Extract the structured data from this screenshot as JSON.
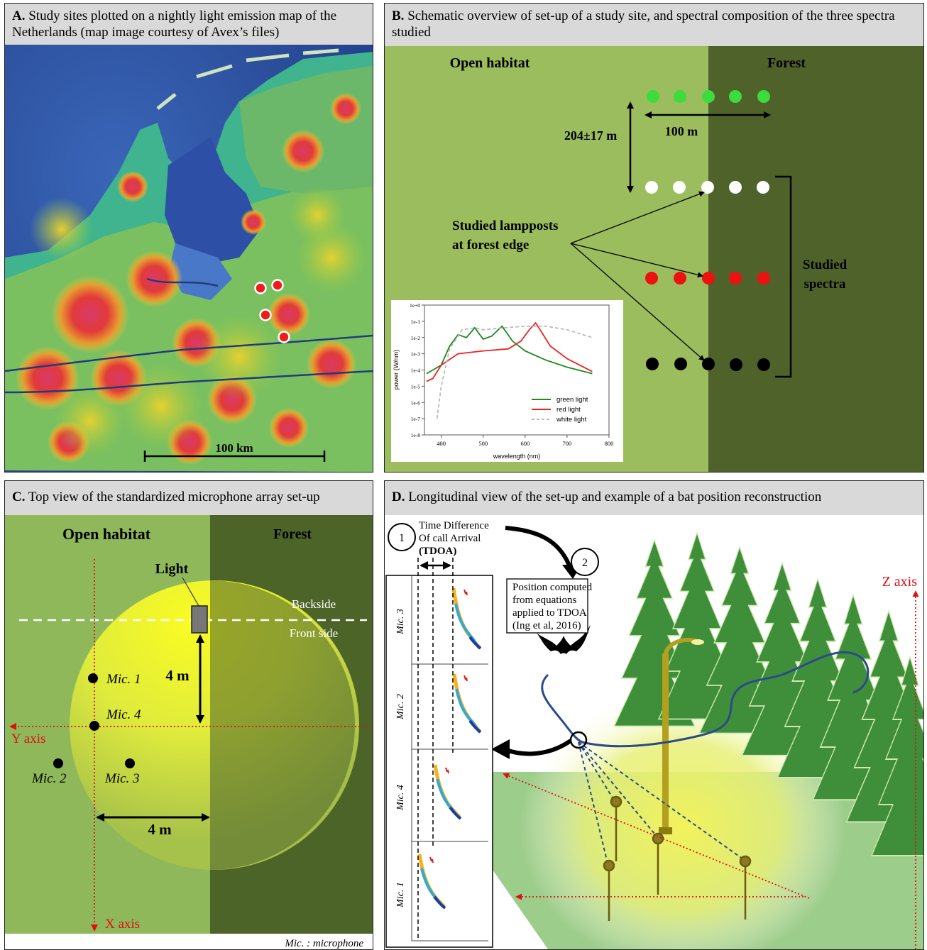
{
  "panel_a": {
    "letter": "A.",
    "title": "Study sites plotted on a nightly light emission map of the Netherlands (map image courtesy of Avex’s files)",
    "scale_label": "100 km"
  },
  "panel_b": {
    "letter": "B.",
    "title": "Schematic overview of set-up of a study site, and spectral composition of the three spectra studied",
    "open_habitat": "Open habitat",
    "forest": "Forest",
    "vertical_distance": "204±17 m",
    "horizontal_distance": "100 m",
    "lampposts_label_1": "Studied lampposts",
    "lampposts_label_2": "at forest edge",
    "spectra_label_1": "Studied",
    "spectra_label_2": "spectra",
    "colors": {
      "open": "#9bbd5e",
      "forest": "#4e6229",
      "green_dot": "#3ddc3d",
      "white_dot": "#ffffff",
      "red_dot": "#ee1111",
      "black_dot": "#000000"
    }
  },
  "chart_data": {
    "type": "line",
    "xlabel": "wavelength (nm)",
    "ylabel": "power (W/nm)",
    "xlim": [
      360,
      800
    ],
    "y_scale": "log",
    "x_ticks": [
      "400",
      "500",
      "600",
      "700",
      "800"
    ],
    "y_ticks": [
      "1e+0",
      "1e-1",
      "1e-2",
      "1e-3",
      "1e-4",
      "1e-5",
      "1e-6",
      "1e-7",
      "1e-8"
    ],
    "legend_position": "bottom-right",
    "series": [
      {
        "name": "green light",
        "color": "#1a8a1a",
        "x": [
          365,
          380,
          400,
          420,
          440,
          460,
          480,
          500,
          520,
          545,
          570,
          600,
          650,
          700,
          760
        ],
        "y": [
          6e-05,
          0.0001,
          0.0002,
          0.003,
          0.015,
          0.01,
          0.04,
          0.008,
          0.012,
          0.05,
          0.006,
          0.0015,
          0.0004,
          0.00015,
          6e-05
        ]
      },
      {
        "name": "red light",
        "color": "#ee2222",
        "x": [
          365,
          380,
          400,
          440,
          500,
          560,
          590,
          610,
          625,
          640,
          660,
          700,
          760
        ],
        "y": [
          2e-05,
          3e-05,
          0.0002,
          0.001,
          0.0015,
          0.002,
          0.006,
          0.03,
          0.08,
          0.02,
          0.003,
          0.0005,
          8e-05
        ]
      },
      {
        "name": "white light",
        "color": "#bbbbbb",
        "dashed": true,
        "x": [
          390,
          400,
          420,
          450,
          480,
          500,
          550,
          600,
          650,
          700,
          760
        ],
        "y": [
          1e-07,
          1e-05,
          0.002,
          0.03,
          0.04,
          0.03,
          0.04,
          0.05,
          0.05,
          0.03,
          0.01
        ]
      }
    ]
  },
  "panel_c": {
    "letter": "C.",
    "title": "Top view of the standardized microphone array set-up",
    "open_habitat": "Open habitat",
    "forest": "Forest",
    "light": "Light",
    "backside": "Backside",
    "front_side": "Front side",
    "dist_vertical": "4 m",
    "dist_horizontal": "4 m",
    "mic1": "Mic. 1",
    "mic2": "Mic. 2",
    "mic3": "Mic. 3",
    "mic4": "Mic. 4",
    "y_axis": "Y axis",
    "x_axis": "X axis",
    "footnote": "Mic. : microphone"
  },
  "panel_d": {
    "letter": "D.",
    "title": "Longitudinal view of the set-up and example of a bat position reconstruction",
    "step1_number": "1",
    "step1_line1": "Time Difference",
    "step1_line2": "Of call Arrival",
    "step1_line3": "(TDOA)",
    "step2_number": "2",
    "step2_line1": "Position computed",
    "step2_line2": "from equations",
    "step2_line3": "applied to TDOA",
    "step2_line4": "(Ing et al, 2016)",
    "z_axis": "Z axis",
    "mic_labels": [
      "Mic. 3",
      "Mic. 2",
      "Mic. 4",
      "Mic. 1"
    ]
  }
}
